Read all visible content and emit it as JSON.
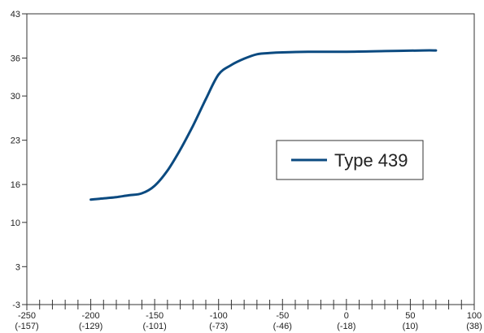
{
  "chart_data": {
    "type": "line",
    "title": "",
    "xlabel": "",
    "ylabel": "",
    "xlim": [
      -250,
      100
    ],
    "ylim": [
      -3,
      43
    ],
    "x_ticks": [
      {
        "value": -250,
        "label": "-250",
        "sublabel": "(-157)"
      },
      {
        "value": -200,
        "label": "-200",
        "sublabel": "(-129)"
      },
      {
        "value": -150,
        "label": "-150",
        "sublabel": "(-101)"
      },
      {
        "value": -100,
        "label": "-100",
        "sublabel": "(-73)"
      },
      {
        "value": -50,
        "label": "-50",
        "sublabel": "(-46)"
      },
      {
        "value": 0,
        "label": "0",
        "sublabel": "(-18)"
      },
      {
        "value": 50,
        "label": "50",
        "sublabel": "(10)"
      },
      {
        "value": 100,
        "label": "100",
        "sublabel": "(38)"
      }
    ],
    "x_minor_step": 10,
    "y_ticks": [
      {
        "value": -3,
        "label": "-3"
      },
      {
        "value": 3,
        "label": "3"
      },
      {
        "value": 10,
        "label": "10"
      },
      {
        "value": 16,
        "label": "16"
      },
      {
        "value": 23,
        "label": "23"
      },
      {
        "value": 30,
        "label": "30"
      },
      {
        "value": 36,
        "label": "36"
      },
      {
        "value": 43,
        "label": "43"
      }
    ],
    "grid": false,
    "legend_position": "center-right",
    "series": [
      {
        "name": "Type 439",
        "color": "#0b4a80",
        "points": [
          [
            -200,
            13.6
          ],
          [
            -190,
            13.8
          ],
          [
            -180,
            14.0
          ],
          [
            -170,
            14.3
          ],
          [
            -160,
            14.6
          ],
          [
            -150,
            15.8
          ],
          [
            -140,
            18.2
          ],
          [
            -130,
            21.5
          ],
          [
            -120,
            25.3
          ],
          [
            -110,
            29.5
          ],
          [
            -100,
            33.4
          ],
          [
            -90,
            34.9
          ],
          [
            -80,
            35.9
          ],
          [
            -70,
            36.6
          ],
          [
            -60,
            36.8
          ],
          [
            -50,
            36.9
          ],
          [
            -30,
            37.0
          ],
          [
            0,
            37.0
          ],
          [
            30,
            37.1
          ],
          [
            60,
            37.2
          ],
          [
            70,
            37.2
          ]
        ]
      }
    ]
  }
}
